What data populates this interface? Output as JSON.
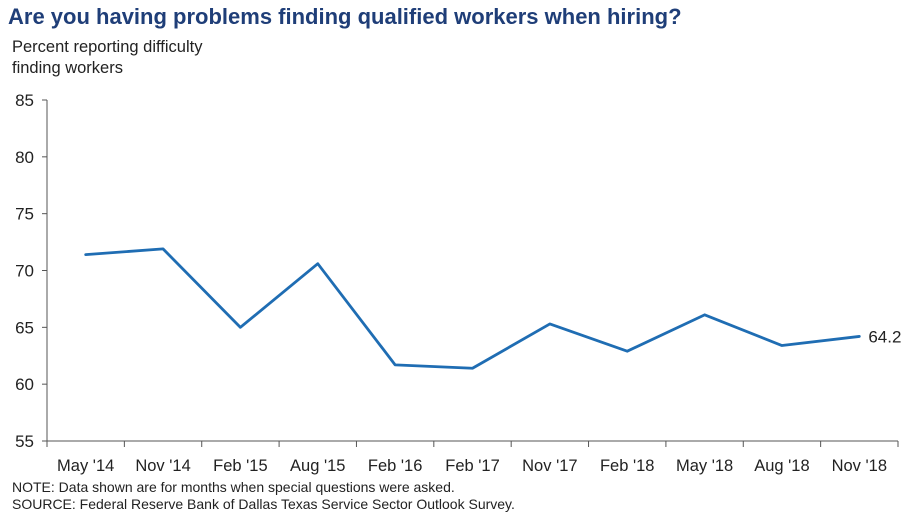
{
  "page": {
    "title": "Are you having problems finding qualified workers when hiring?",
    "ylabel_line1": "Percent reporting difficulty",
    "ylabel_line2": "finding workers",
    "note": "NOTE: Data shown are for months when special questions were asked.",
    "source": "SOURCE: Federal Reserve Bank of Dallas Texas Service Sector Outlook Survey."
  },
  "colors": {
    "title": "#1f3e78",
    "line": "#1f6db3",
    "axis": "#555555"
  },
  "chart_data": {
    "type": "line",
    "title": "Are you having problems finding qualified workers when hiring?",
    "xlabel": "",
    "ylabel": "Percent reporting difficulty finding workers",
    "categories": [
      "May '14",
      "Nov '14",
      "Feb '15",
      "Aug '15",
      "Feb '16",
      "Feb '17",
      "Nov '17",
      "Feb '18",
      "May '18",
      "Aug '18",
      "Nov '18"
    ],
    "series": [
      {
        "values": [
          71.4,
          71.9,
          65.0,
          70.6,
          61.7,
          61.4,
          65.3,
          62.9,
          66.1,
          63.4,
          64.2
        ]
      }
    ],
    "ylim": [
      55,
      85
    ],
    "yticks": [
      55,
      60,
      65,
      70,
      75,
      80,
      85
    ],
    "annotations": [
      {
        "category": "Nov '18",
        "text": "64.2"
      }
    ],
    "grid": false,
    "legend": "none"
  }
}
